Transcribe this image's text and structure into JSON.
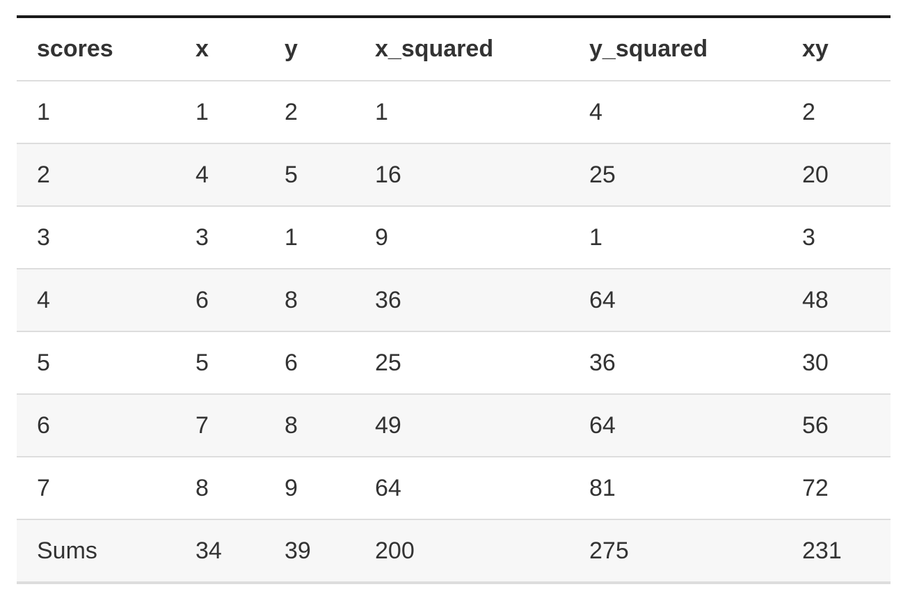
{
  "table": {
    "columns": [
      "scores",
      "x",
      "y",
      "x_squared",
      "y_squared",
      "xy"
    ],
    "rows": [
      [
        "1",
        "1",
        "2",
        "1",
        "4",
        "2"
      ],
      [
        "2",
        "4",
        "5",
        "16",
        "25",
        "20"
      ],
      [
        "3",
        "3",
        "1",
        "9",
        "1",
        "3"
      ],
      [
        "4",
        "6",
        "8",
        "36",
        "64",
        "48"
      ],
      [
        "5",
        "5",
        "6",
        "25",
        "36",
        "30"
      ],
      [
        "6",
        "7",
        "8",
        "49",
        "64",
        "56"
      ],
      [
        "7",
        "8",
        "9",
        "64",
        "81",
        "72"
      ],
      [
        "Sums",
        "34",
        "39",
        "200",
        "275",
        "231"
      ]
    ]
  }
}
